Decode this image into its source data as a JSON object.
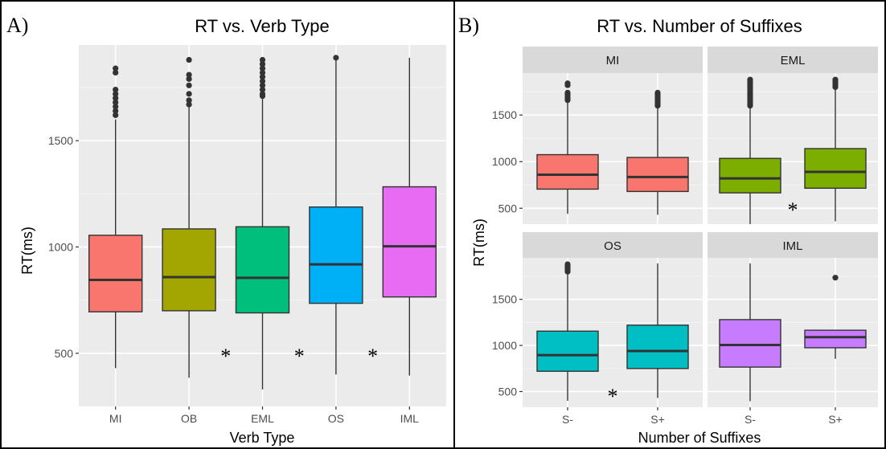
{
  "panels": {
    "a": {
      "letter": "A)"
    },
    "b": {
      "letter": "B)"
    }
  },
  "chart_data": [
    {
      "type": "box",
      "title": "RT vs. Verb Type",
      "xlabel": "Verb Type",
      "ylabel": "RT(ms)",
      "ylim": [
        250,
        1950
      ],
      "yticks": [
        500,
        1000,
        1500
      ],
      "grid": true,
      "categories": [
        "MI",
        "OB",
        "EML",
        "OS",
        "IML"
      ],
      "colors": [
        "#F8766D",
        "#A3A500",
        "#00BF7D",
        "#00B0F6",
        "#E76BF3"
      ],
      "boxes": [
        {
          "category": "MI",
          "whisker_low": 430,
          "q1": 695,
          "median": 845,
          "q3": 1055,
          "whisker_high": 1600,
          "outliers": [
            1620,
            1640,
            1660,
            1680,
            1700,
            1720,
            1740,
            1820,
            1840
          ]
        },
        {
          "category": "OB",
          "whisker_low": 385,
          "q1": 700,
          "median": 858,
          "q3": 1085,
          "whisker_high": 1660,
          "outliers": [
            1670,
            1690,
            1720,
            1760,
            1790,
            1810,
            1880
          ]
        },
        {
          "category": "EML",
          "whisker_low": 330,
          "q1": 690,
          "median": 855,
          "q3": 1095,
          "whisker_high": 1700,
          "outliers": [
            1710,
            1720,
            1740,
            1760,
            1780,
            1800,
            1820,
            1840,
            1860,
            1880
          ]
        },
        {
          "category": "OS",
          "whisker_low": 400,
          "q1": 735,
          "median": 918,
          "q3": 1188,
          "whisker_high": 1880,
          "outliers": [
            1890
          ]
        },
        {
          "category": "IML",
          "whisker_low": 395,
          "q1": 765,
          "median": 1003,
          "q3": 1283,
          "whisker_high": 1890,
          "outliers": []
        }
      ],
      "annotations": [
        {
          "text": "*",
          "x_between": [
            "OB",
            "EML"
          ],
          "y": 500
        },
        {
          "text": "*",
          "x_between": [
            "EML",
            "OS"
          ],
          "y": 500
        },
        {
          "text": "*",
          "x_between": [
            "OS",
            "IML"
          ],
          "y": 500
        }
      ]
    },
    {
      "type": "box",
      "title": "RT vs. Number of Suffixes",
      "xlabel": "Number of Suffixes",
      "ylabel": "RT(ms)",
      "ylim": [
        330,
        1950
      ],
      "yticks": [
        500,
        1000,
        1500
      ],
      "grid": true,
      "categories": [
        "S-",
        "S+"
      ],
      "facets": [
        {
          "name": "MI",
          "color": "#F8766D",
          "boxes": [
            {
              "category": "S-",
              "whisker_low": 440,
              "q1": 705,
              "median": 860,
              "q3": 1075,
              "whisker_high": 1650,
              "outliers": [
                1660,
                1680,
                1700,
                1720,
                1740,
                1820,
                1840
              ]
            },
            {
              "category": "S+",
              "whisker_low": 430,
              "q1": 680,
              "median": 835,
              "q3": 1045,
              "whisker_high": 1580,
              "outliers": [
                1600,
                1620,
                1640,
                1660,
                1680,
                1700,
                1720,
                1740
              ]
            }
          ],
          "annotations": []
        },
        {
          "name": "EML",
          "color": "#7CAE00",
          "boxes": [
            {
              "category": "S-",
              "whisker_low": 330,
              "q1": 665,
              "median": 820,
              "q3": 1035,
              "whisker_high": 1580,
              "outliers": [
                1600,
                1620,
                1640,
                1660,
                1680,
                1700,
                1720,
                1740,
                1760,
                1780,
                1800,
                1820,
                1840,
                1860,
                1880
              ]
            },
            {
              "category": "S+",
              "whisker_low": 360,
              "q1": 715,
              "median": 890,
              "q3": 1140,
              "whisker_high": 1780,
              "outliers": [
                1800,
                1820,
                1840,
                1860,
                1880
              ]
            }
          ],
          "annotations": [
            {
              "text": "*",
              "x_between": [
                "S-",
                "S+"
              ],
              "y": 510
            }
          ]
        },
        {
          "name": "OS",
          "color": "#00BFC4",
          "boxes": [
            {
              "category": "S-",
              "whisker_low": 400,
              "q1": 720,
              "median": 895,
              "q3": 1155,
              "whisker_high": 1790,
              "outliers": [
                1800,
                1820,
                1840,
                1860,
                1880
              ]
            },
            {
              "category": "S+",
              "whisker_low": 430,
              "q1": 750,
              "median": 940,
              "q3": 1220,
              "whisker_high": 1890,
              "outliers": []
            }
          ],
          "annotations": [
            {
              "text": "*",
              "x_between": [
                "S-",
                "S+"
              ],
              "y": 480
            }
          ]
        },
        {
          "name": "IML",
          "color": "#C77CFF",
          "boxes": [
            {
              "category": "S-",
              "whisker_low": 395,
              "q1": 765,
              "median": 1005,
              "q3": 1280,
              "whisker_high": 1890,
              "outliers": []
            },
            {
              "category": "S+",
              "whisker_low": 855,
              "q1": 975,
              "median": 1090,
              "q3": 1165,
              "whisker_high": 1165,
              "outliers": [
                1735
              ]
            }
          ],
          "annotations": []
        }
      ]
    }
  ]
}
